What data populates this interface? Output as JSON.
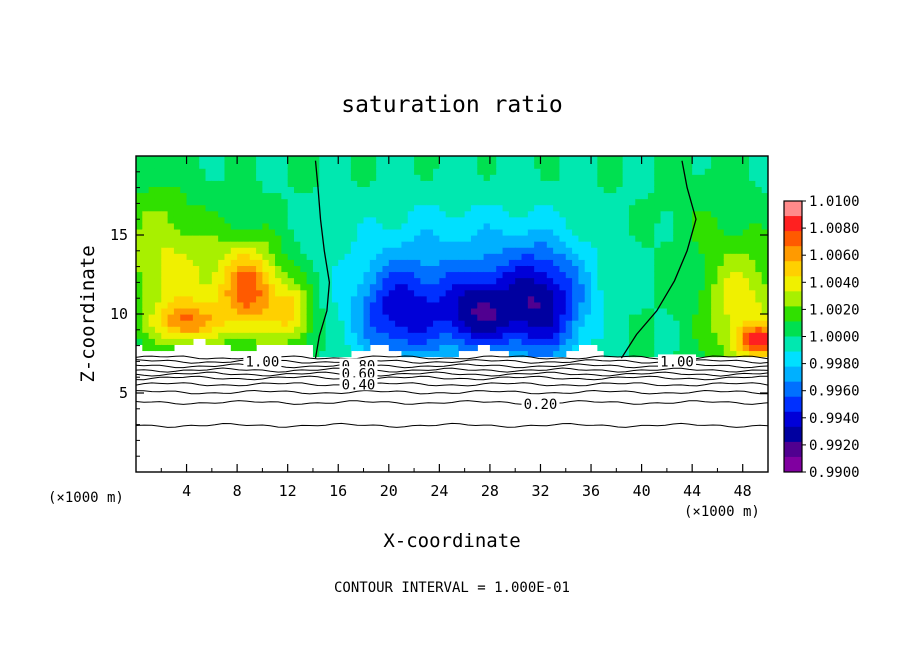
{
  "chart_data": {
    "type": "heatmap",
    "title": "saturation ratio",
    "xlabel": "X-coordinate",
    "ylabel": "Z-coordinate",
    "x_unit": "(×1000 m)",
    "z_unit": "(×1000 m)",
    "xlim": [
      0,
      50
    ],
    "ylim": [
      0,
      20
    ],
    "x_ticks": [
      4,
      8,
      12,
      16,
      20,
      24,
      28,
      32,
      36,
      40,
      44,
      48
    ],
    "y_ticks": [
      5,
      10,
      15
    ],
    "footer": "CONTOUR INTERVAL = 1.000E-01",
    "colorbar": {
      "labels": [
        "1.0100",
        "1.0080",
        "1.0060",
        "1.0040",
        "1.0020",
        "1.0000",
        "0.9980",
        "0.9960",
        "0.9940",
        "0.9920",
        "0.9900"
      ],
      "colors": [
        "#ff8a8a",
        "#ff2020",
        "#ff5a00",
        "#ff9a00",
        "#ffd000",
        "#f0f000",
        "#a8f000",
        "#30e000",
        "#00e050",
        "#00e8b0",
        "#00e0ff",
        "#00b0ff",
        "#0070ff",
        "#0030ff",
        "#0000d8",
        "#0000a0",
        "#500090",
        "#8000a0"
      ]
    },
    "contour_labels": [
      "1.00",
      "0.80",
      "0.60",
      "0.40",
      "0.20"
    ],
    "s1_boundary_left": [
      [
        14.2,
        7.2
      ],
      [
        14.5,
        8.6
      ],
      [
        15.1,
        10.2
      ],
      [
        15.3,
        12.0
      ],
      [
        14.9,
        14.0
      ],
      [
        14.6,
        16.0
      ],
      [
        14.4,
        18.0
      ],
      [
        14.2,
        19.7
      ]
    ],
    "s1_boundary_right": [
      [
        38.4,
        7.2
      ],
      [
        39.6,
        8.7
      ],
      [
        41.2,
        10.2
      ],
      [
        42.6,
        12.1
      ],
      [
        43.6,
        14.0
      ],
      [
        44.3,
        16.0
      ],
      [
        43.6,
        18.0
      ],
      [
        43.2,
        19.7
      ]
    ],
    "contours": [
      {
        "level": 1.0,
        "z": 7.25
      },
      {
        "level": 0.9,
        "z": 7.0
      },
      {
        "level": 0.8,
        "z": 6.72
      },
      {
        "level": 0.7,
        "z": 6.45
      },
      {
        "level": 0.6,
        "z": 6.2
      },
      {
        "level": 0.5,
        "z": 5.95
      },
      {
        "level": 0.4,
        "z": 5.55
      },
      {
        "level": 0.3,
        "z": 5.05
      },
      {
        "level": 0.2,
        "z": 4.4
      },
      {
        "level": 0.1,
        "z": 2.95
      }
    ],
    "sat_blobs": [
      {
        "x": 3,
        "z": 12.5,
        "sx": 4.0,
        "sz": 4.0,
        "v": 0.0035
      },
      {
        "x": 9,
        "z": 11.5,
        "sx": 2.6,
        "sz": 3.0,
        "v": 0.007
      },
      {
        "x": 4,
        "z": 9.5,
        "sx": 2.5,
        "sz": 1.3,
        "v": 0.005
      },
      {
        "x": 12.5,
        "z": 10.0,
        "sx": 1.6,
        "sz": 2.0,
        "v": 0.004
      },
      {
        "x": 1.0,
        "z": 16.5,
        "sx": 3.0,
        "sz": 3.0,
        "v": 0.001
      },
      {
        "x": 21,
        "z": 10.0,
        "sx": 3.8,
        "sz": 3.2,
        "v": -0.006
      },
      {
        "x": 27,
        "z": 10.0,
        "sx": 2.8,
        "sz": 2.6,
        "v": -0.006
      },
      {
        "x": 32,
        "z": 10.5,
        "sx": 3.5,
        "sz": 3.5,
        "v": -0.007
      },
      {
        "x": 26,
        "z": 14.0,
        "sx": 9.0,
        "sz": 3.5,
        "v": -0.002
      },
      {
        "x": 48,
        "z": 10.5,
        "sx": 3.2,
        "sz": 4.0,
        "v": 0.004
      },
      {
        "x": 49.5,
        "z": 8.3,
        "sx": 2.0,
        "sz": 1.0,
        "v": 0.006
      },
      {
        "x": 45,
        "z": 16.0,
        "sx": 3.0,
        "sz": 3.0,
        "v": 0.0008
      }
    ]
  }
}
